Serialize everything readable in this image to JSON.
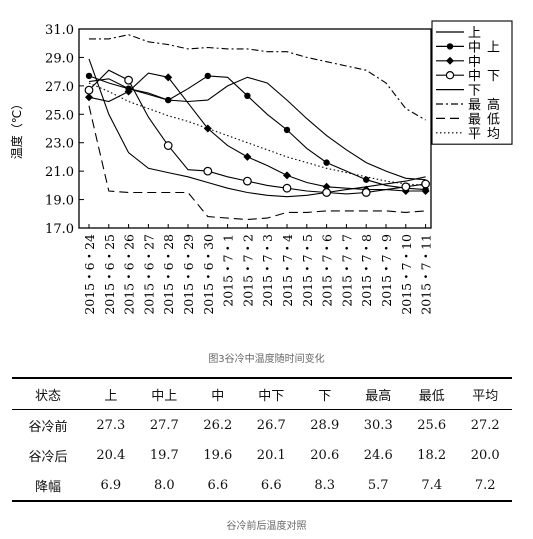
{
  "chart_data": {
    "type": "line",
    "ylabel": "温度（℃）",
    "ylim": [
      17.0,
      31.0
    ],
    "yticks": [
      "17.0",
      "19.0",
      "21.0",
      "23.0",
      "25.0",
      "27.0",
      "29.0",
      "31.0"
    ],
    "categories": [
      "2015・6・24",
      "2015・6・25",
      "2015・6・26",
      "2015・6・27",
      "2015・6・28",
      "2015・6・29",
      "2015・6・30",
      "2015・7・1",
      "2015・7・2",
      "2015・7・3",
      "2015・7・4",
      "2015・7・5",
      "2015・7・6",
      "2015・7・7",
      "2015・7・8",
      "2015・7・9",
      "2015・7・10",
      "2015・7・11"
    ],
    "legend_position": "top-right",
    "series": [
      {
        "name": "上",
        "style": "solid",
        "marker": "none",
        "values": [
          27.3,
          27.5,
          26.8,
          26.5,
          26.0,
          25.9,
          26.0,
          27.0,
          27.6,
          27.2,
          26.0,
          24.7,
          23.5,
          22.5,
          21.6,
          21.0,
          20.5,
          20.4
        ]
      },
      {
        "name": "中上",
        "style": "solid",
        "marker": "circle-filled",
        "values": [
          27.7,
          27.2,
          26.8,
          26.4,
          26.0,
          26.8,
          27.7,
          27.6,
          26.3,
          25.0,
          23.9,
          22.6,
          21.6,
          21.0,
          20.4,
          20.0,
          19.8,
          19.7
        ]
      },
      {
        "name": "中",
        "style": "solid",
        "marker": "diamond-filled",
        "values": [
          26.2,
          25.9,
          26.6,
          27.9,
          27.6,
          25.8,
          24.0,
          22.8,
          22.0,
          21.4,
          20.7,
          20.2,
          19.9,
          19.8,
          19.7,
          19.7,
          19.6,
          19.6
        ]
      },
      {
        "name": "中下",
        "style": "solid",
        "marker": "circle-open",
        "values": [
          26.7,
          28.1,
          27.4,
          24.8,
          22.8,
          21.1,
          21.0,
          20.6,
          20.3,
          20.0,
          19.8,
          19.6,
          19.5,
          19.4,
          19.5,
          19.7,
          19.9,
          20.1
        ]
      },
      {
        "name": "下",
        "style": "solid",
        "marker": "none",
        "values": [
          28.9,
          25.0,
          22.3,
          21.2,
          20.9,
          20.6,
          20.2,
          19.8,
          19.5,
          19.3,
          19.2,
          19.3,
          19.5,
          19.7,
          19.9,
          20.1,
          20.3,
          20.6
        ]
      },
      {
        "name": "最高",
        "style": "dashdot",
        "marker": "none",
        "values": [
          30.3,
          30.3,
          30.6,
          30.1,
          29.9,
          29.6,
          29.7,
          29.6,
          29.6,
          29.4,
          29.4,
          29.0,
          28.7,
          28.4,
          28.1,
          27.2,
          25.4,
          24.6
        ]
      },
      {
        "name": "最低",
        "style": "dash",
        "marker": "none",
        "values": [
          25.6,
          19.6,
          19.5,
          19.5,
          19.5,
          19.5,
          17.8,
          17.7,
          17.6,
          17.7,
          18.1,
          18.1,
          18.2,
          18.2,
          18.2,
          18.2,
          18.1,
          18.2
        ]
      },
      {
        "name": "平均",
        "style": "dotted",
        "marker": "none",
        "values": [
          27.2,
          26.6,
          25.9,
          25.4,
          24.9,
          24.5,
          24.0,
          23.5,
          23.0,
          22.5,
          22.0,
          21.6,
          21.2,
          20.9,
          20.6,
          20.3,
          20.1,
          20.0
        ]
      }
    ]
  },
  "caption_chart": "图3谷冷中温度随时间变化",
  "table": {
    "headers": [
      "状态",
      "上",
      "中上",
      "中",
      "中下",
      "下",
      "最高",
      "最低",
      "平均"
    ],
    "rows": [
      [
        "谷冷前",
        "27.3",
        "27.7",
        "26.2",
        "26.7",
        "28.9",
        "30.3",
        "25.6",
        "27.2"
      ],
      [
        "谷冷后",
        "20.4",
        "19.7",
        "19.6",
        "20.1",
        "20.6",
        "24.6",
        "18.2",
        "20.0"
      ],
      [
        "降幅",
        "6.9",
        "8.0",
        "6.6",
        "6.6",
        "8.3",
        "5.7",
        "7.4",
        "7.2"
      ]
    ]
  },
  "caption_table": "谷冷前后温度对照"
}
